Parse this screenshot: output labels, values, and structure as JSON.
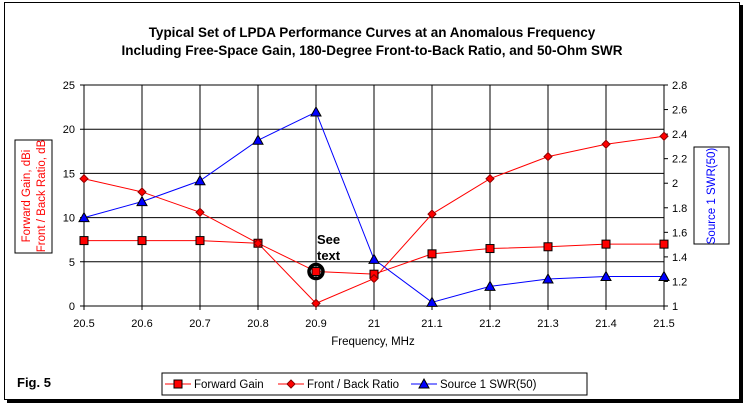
{
  "chart_data": {
    "type": "line",
    "title": [
      "Typical Set of LPDA Performance Curves at an Anomalous Frequency",
      "Including Free-Space Gain, 180-Degree Front-to-Back Ratio, and 50-Ohm SWR"
    ],
    "xlabel": "Frequency, MHz",
    "ylabel": [
      "Forward Gain,  dBi",
      "Front / Back Ratio,  dB"
    ],
    "y2label": "Source 1 SWR(50)",
    "x": [
      20.5,
      20.6,
      20.7,
      20.8,
      20.9,
      21,
      21.1,
      21.2,
      21.3,
      21.4,
      21.5
    ],
    "x_tick_labels": [
      "20.5",
      "20.6",
      "20.7",
      "20.8",
      "20.9",
      "21",
      "21.1",
      "21.2",
      "21.3",
      "21.4",
      "21.5"
    ],
    "ylim": [
      0,
      25
    ],
    "y_ticks": [
      "0",
      "5",
      "10",
      "15",
      "20",
      "25"
    ],
    "y2lim": [
      1,
      2.8
    ],
    "y2_ticks": [
      "1",
      "1.2",
      "1.4",
      "1.6",
      "1.8",
      "2",
      "2.2",
      "2.4",
      "2.6",
      "2.8"
    ],
    "grid": true,
    "legend_position": "bottom",
    "series": [
      {
        "name": "Forward Gain",
        "axis": "left",
        "color": "#ff0000",
        "marker": "square",
        "values": [
          7.4,
          7.4,
          7.4,
          7.1,
          3.9,
          3.6,
          5.9,
          6.5,
          6.7,
          7.0,
          7.0
        ]
      },
      {
        "name": "Front / Back Ratio",
        "axis": "left",
        "color": "#ff0000",
        "marker": "diamond",
        "values": [
          14.4,
          12.9,
          10.6,
          7.1,
          0.3,
          3.1,
          10.4,
          14.4,
          16.9,
          18.3,
          19.2
        ]
      },
      {
        "name": "Source 1 SWR(50)",
        "axis": "right",
        "color": "#0000ff",
        "marker": "triangle",
        "values": [
          1.72,
          1.85,
          2.02,
          2.35,
          2.58,
          1.38,
          1.03,
          1.16,
          1.22,
          1.24,
          1.24
        ]
      }
    ],
    "annotation": {
      "text": [
        "See",
        "text"
      ],
      "x": 20.9,
      "y": 3.9
    }
  },
  "figure_label": "Fig. 5"
}
